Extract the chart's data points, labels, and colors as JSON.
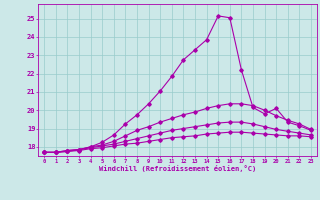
{
  "xlabel": "Windchill (Refroidissement éolien,°C)",
  "xlim": [
    -0.5,
    23.5
  ],
  "ylim": [
    17.5,
    25.8
  ],
  "xtick_vals": [
    0,
    1,
    2,
    3,
    4,
    5,
    6,
    7,
    8,
    9,
    10,
    11,
    12,
    13,
    14,
    15,
    16,
    17,
    18,
    19,
    20,
    21,
    22,
    23
  ],
  "ytick_vals": [
    18,
    19,
    20,
    21,
    22,
    23,
    24,
    25
  ],
  "bg_color": "#cce8e8",
  "line_color": "#aa00aa",
  "grid_color": "#99cccc",
  "line1_y": [
    17.7,
    17.7,
    17.8,
    17.85,
    18.0,
    18.25,
    18.65,
    19.25,
    19.75,
    20.35,
    21.05,
    21.85,
    22.75,
    23.3,
    23.85,
    25.15,
    25.05,
    22.2,
    20.15,
    19.8,
    20.1,
    19.35,
    19.15,
    18.9
  ],
  "line2_y": [
    17.7,
    17.7,
    17.8,
    17.85,
    18.0,
    18.1,
    18.3,
    18.6,
    18.9,
    19.1,
    19.35,
    19.55,
    19.75,
    19.9,
    20.1,
    20.25,
    20.35,
    20.35,
    20.25,
    20.0,
    19.7,
    19.45,
    19.25,
    18.95
  ],
  "line3_y": [
    17.7,
    17.7,
    17.75,
    17.85,
    17.95,
    18.05,
    18.15,
    18.3,
    18.45,
    18.6,
    18.75,
    18.9,
    19.0,
    19.1,
    19.2,
    19.3,
    19.35,
    19.35,
    19.25,
    19.1,
    18.95,
    18.85,
    18.75,
    18.65
  ],
  "line4_y": [
    17.7,
    17.7,
    17.75,
    17.8,
    17.9,
    17.95,
    18.05,
    18.15,
    18.2,
    18.3,
    18.4,
    18.5,
    18.55,
    18.6,
    18.7,
    18.75,
    18.8,
    18.8,
    18.75,
    18.7,
    18.65,
    18.6,
    18.6,
    18.55
  ]
}
